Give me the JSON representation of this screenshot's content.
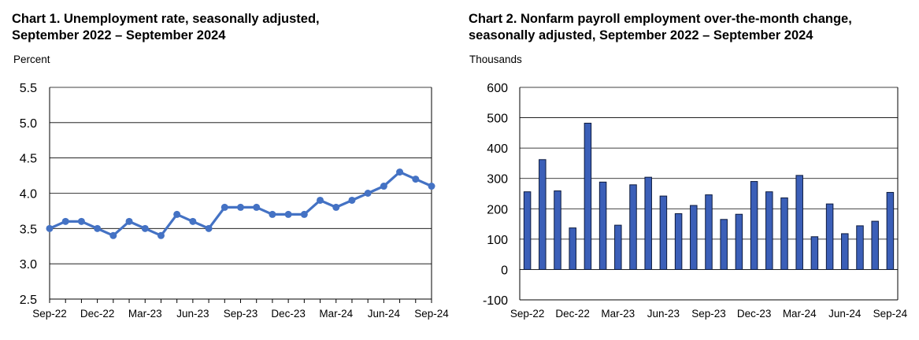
{
  "colors": {
    "line": "#4472c4",
    "bar_fill": "#3b5fb8",
    "bar_stroke": "#0d1b3e",
    "grid": "#000000"
  },
  "chart1": {
    "title_line1": "Chart 1. Unemployment rate, seasonally adjusted,",
    "title_line2": "September 2022 – September 2024",
    "unit": "Percent"
  },
  "chart2": {
    "title_line1": "Chart 2. Nonfarm payroll employment over-the-month change,",
    "title_line2": "seasonally adjusted, September 2022 – September 2024",
    "unit": "Thousands"
  },
  "chart_data": [
    {
      "type": "line",
      "title": "Chart 1. Unemployment rate, seasonally adjusted, September 2022 – September 2024",
      "ylabel": "Percent",
      "ylim": [
        2.5,
        5.5
      ],
      "yticks": [
        "2.5",
        "3.0",
        "3.5",
        "4.0",
        "4.5",
        "5.0",
        "5.5"
      ],
      "xtick_labels": [
        "Sep-22",
        "Dec-22",
        "Mar-23",
        "Jun-23",
        "Sep-23",
        "Dec-23",
        "Mar-24",
        "Jun-24",
        "Sep-24"
      ],
      "x": [
        "Sep-22",
        "Oct-22",
        "Nov-22",
        "Dec-22",
        "Jan-23",
        "Feb-23",
        "Mar-23",
        "Apr-23",
        "May-23",
        "Jun-23",
        "Jul-23",
        "Aug-23",
        "Sep-23",
        "Oct-23",
        "Nov-23",
        "Dec-23",
        "Jan-24",
        "Feb-24",
        "Mar-24",
        "Apr-24",
        "May-24",
        "Jun-24",
        "Jul-24",
        "Aug-24",
        "Sep-24"
      ],
      "values": [
        3.5,
        3.6,
        3.6,
        3.5,
        3.4,
        3.6,
        3.5,
        3.4,
        3.7,
        3.6,
        3.5,
        3.8,
        3.8,
        3.8,
        3.7,
        3.7,
        3.7,
        3.9,
        3.8,
        3.9,
        4.0,
        4.1,
        4.3,
        4.2,
        4.1
      ],
      "grid": "horizontal"
    },
    {
      "type": "bar",
      "title": "Chart 2. Nonfarm payroll employment over-the-month change, seasonally adjusted, September 2022 – September 2024",
      "ylabel": "Thousands",
      "ylim": [
        -100,
        600
      ],
      "yticks": [
        "-100",
        "0",
        "100",
        "200",
        "300",
        "400",
        "500",
        "600"
      ],
      "xtick_labels": [
        "Sep-22",
        "Dec-22",
        "Mar-23",
        "Jun-23",
        "Sep-23",
        "Dec-23",
        "Mar-24",
        "Jun-24",
        "Sep-24"
      ],
      "categories": [
        "Sep-22",
        "Oct-22",
        "Nov-22",
        "Dec-22",
        "Jan-23",
        "Feb-23",
        "Mar-23",
        "Apr-23",
        "May-23",
        "Jun-23",
        "Jul-23",
        "Aug-23",
        "Sep-23",
        "Oct-23",
        "Nov-23",
        "Dec-23",
        "Jan-24",
        "Feb-24",
        "Mar-24",
        "Apr-24",
        "May-24",
        "Jun-24",
        "Jul-24",
        "Aug-24",
        "Sep-24"
      ],
      "values": [
        256,
        362,
        259,
        137,
        482,
        288,
        146,
        279,
        304,
        242,
        184,
        211,
        246,
        165,
        182,
        290,
        256,
        236,
        310,
        108,
        216,
        118,
        144,
        159,
        254
      ],
      "grid": "horizontal"
    }
  ]
}
